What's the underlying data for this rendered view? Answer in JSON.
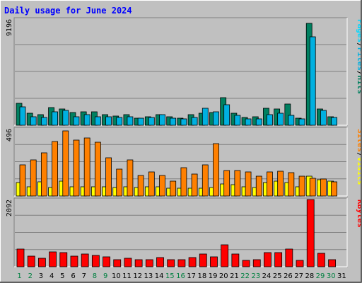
{
  "colors": {
    "background": "#c0c0c0",
    "title": "#0000ff",
    "grid": "#808080",
    "hits": "#008060",
    "files": "#00b0e0",
    "pages": "#00d8ff",
    "visits": "#ffff00",
    "sites": "#ff8000",
    "kbytes": "#ff0000",
    "weekday_label": "#000000",
    "weekend_label": "#008040"
  },
  "chart_data": {
    "type": "bar",
    "title": "Daily usage for June 2024",
    "x": [
      "1",
      "2",
      "3",
      "4",
      "5",
      "6",
      "7",
      "8",
      "9",
      "10",
      "11",
      "12",
      "13",
      "14",
      "15",
      "16",
      "17",
      "18",
      "19",
      "20",
      "21",
      "22",
      "23",
      "24",
      "25",
      "26",
      "27",
      "28",
      "29",
      "30",
      "31"
    ],
    "weekend_days": [
      "1",
      "2",
      "8",
      "9",
      "15",
      "16",
      "22",
      "23",
      "29",
      "30"
    ],
    "panels": [
      {
        "name": "hits-files-pages",
        "ymax_label": "9196",
        "ylim": [
          0,
          9196
        ],
        "side_labels": [
          "Pages",
          "/",
          "Files",
          "/",
          "Hits"
        ],
        "series": [
          {
            "name": "Hits",
            "values": [
              1870,
              1050,
              930,
              1560,
              1420,
              1080,
              1150,
              1150,
              930,
              790,
              930,
              640,
              710,
              910,
              710,
              620,
              940,
              1070,
              1080,
              2370,
              1070,
              690,
              710,
              1460,
              1440,
              1810,
              610,
              8830,
              1380,
              720,
              0
            ]
          },
          {
            "name": "Files",
            "values": [
              1580,
              710,
              660,
              1180,
              1270,
              730,
              920,
              730,
              730,
              650,
              710,
              620,
              650,
              900,
              600,
              560,
              650,
              1450,
              1150,
              1750,
              860,
              550,
              550,
              920,
              1050,
              880,
              530,
              7640,
              1280,
              650,
              0
            ]
          },
          {
            "name": "Pages",
            "values": [
              0,
              0,
              0,
              0,
              0,
              0,
              0,
              0,
              0,
              0,
              0,
              0,
              0,
              0,
              0,
              0,
              0,
              0,
              0,
              0,
              0,
              0,
              0,
              0,
              0,
              0,
              0,
              0,
              0,
              0,
              0
            ]
          }
        ]
      },
      {
        "name": "visits-sites",
        "ymax_label": "496",
        "ylim": [
          0,
          496
        ],
        "side_labels": [
          "Sites",
          "/",
          "Visits"
        ],
        "series": [
          {
            "name": "Visits",
            "values": [
              100,
              70,
              105,
              65,
              110,
              70,
              70,
              70,
              70,
              65,
              70,
              65,
              70,
              70,
              60,
              55,
              60,
              60,
              65,
              90,
              85,
              70,
              65,
              100,
              110,
              100,
              70,
              145,
              120,
              110,
              0
            ]
          },
          {
            "name": "Sites",
            "values": [
              230,
              265,
              320,
              400,
              480,
              410,
              430,
              395,
              280,
              200,
              265,
              150,
              180,
              150,
              110,
              210,
              160,
              230,
              385,
              190,
              190,
              175,
              145,
              175,
              185,
              170,
              145,
              130,
              125,
              105,
              0
            ]
          }
        ]
      },
      {
        "name": "kbytes",
        "ymax_label": "2092",
        "ylim": [
          0,
          2092
        ],
        "side_labels": [
          "KBytes"
        ],
        "series": [
          {
            "name": "KBytes",
            "values": [
              560,
              330,
              270,
              460,
              430,
              330,
              400,
              360,
              300,
              210,
              270,
              210,
              220,
              290,
              220,
              210,
              290,
              390,
              310,
              680,
              400,
              200,
              210,
              440,
              430,
              560,
              200,
              2100,
              420,
              230,
              0
            ]
          }
        ]
      }
    ]
  }
}
